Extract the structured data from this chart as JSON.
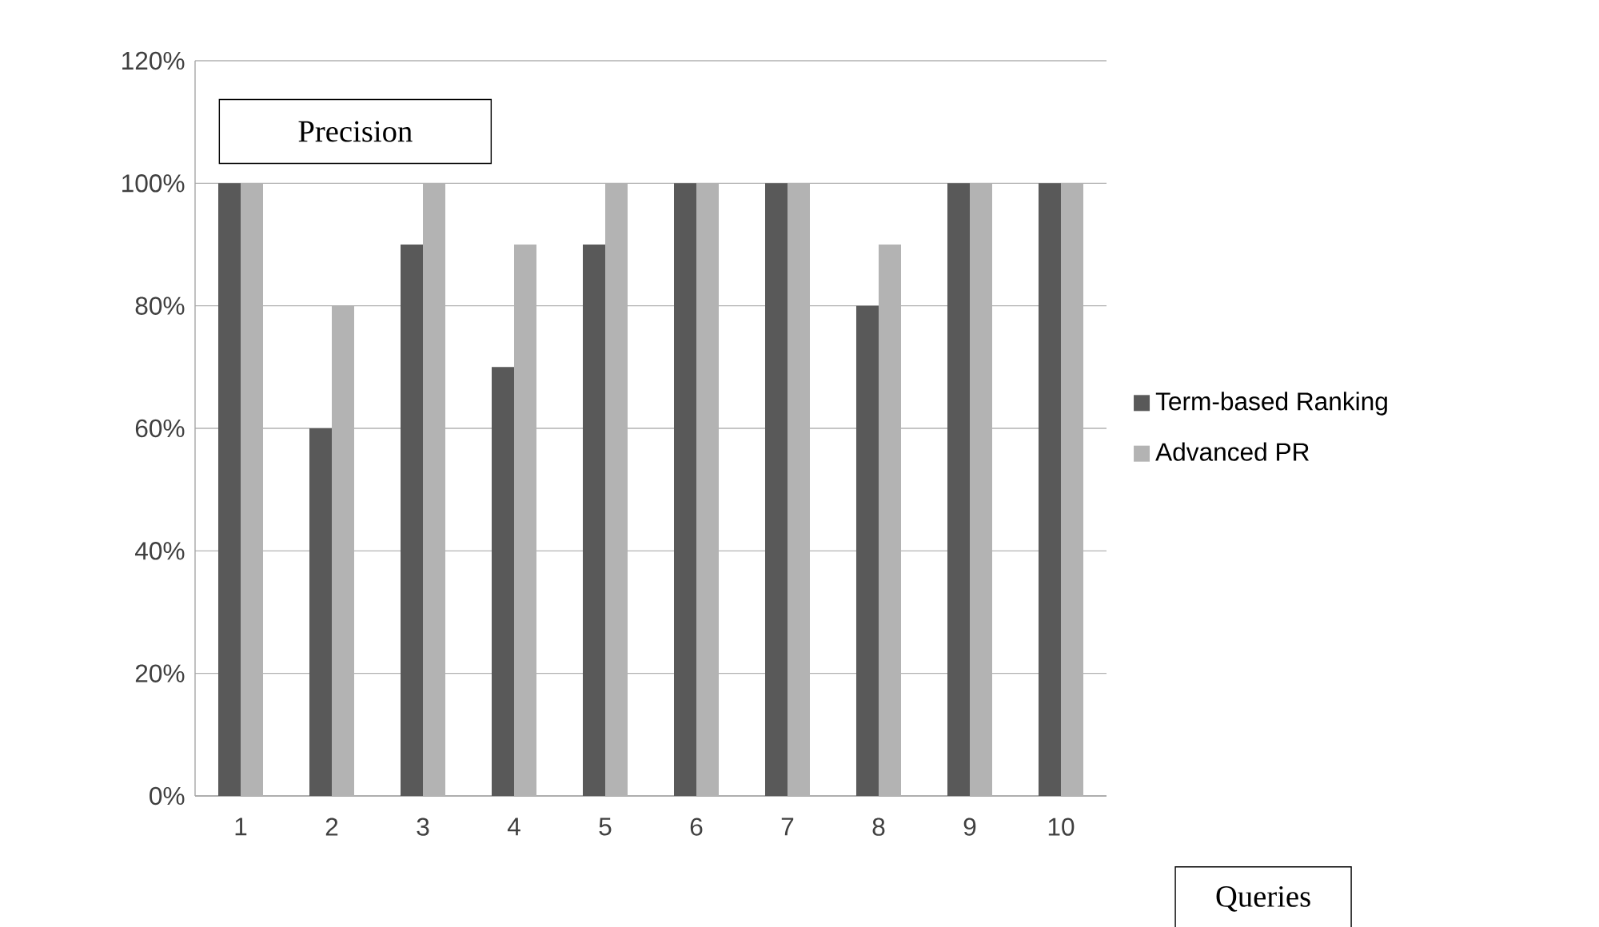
{
  "chart_data": {
    "type": "bar",
    "ylabel": "Precision",
    "xlabel": "Queries",
    "categories": [
      "1",
      "2",
      "3",
      "4",
      "5",
      "6",
      "7",
      "8",
      "9",
      "10"
    ],
    "series": [
      {
        "name": "Term-based Ranking",
        "color": "#595959",
        "values": [
          100,
          60,
          90,
          70,
          90,
          100,
          100,
          80,
          100,
          100
        ]
      },
      {
        "name": "Advanced PR",
        "color": "#b3b3b3",
        "values": [
          100,
          80,
          100,
          90,
          100,
          100,
          100,
          90,
          100,
          100
        ]
      }
    ],
    "ylim": [
      0,
      120
    ],
    "yticks": [
      {
        "value": 0,
        "label": "0%"
      },
      {
        "value": 20,
        "label": "20%"
      },
      {
        "value": 40,
        "label": "40%"
      },
      {
        "value": 60,
        "label": "60%"
      },
      {
        "value": 80,
        "label": "80%"
      },
      {
        "value": 100,
        "label": "100%"
      },
      {
        "value": 120,
        "label": "120%"
      }
    ],
    "grid": "y",
    "legend": "right"
  }
}
